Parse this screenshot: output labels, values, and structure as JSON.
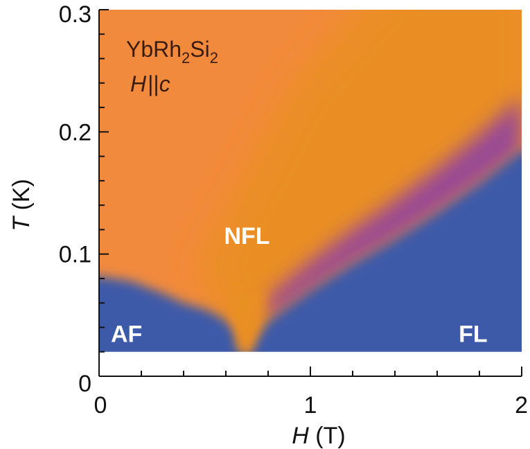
{
  "chart_data": {
    "type": "heatmap",
    "title": "",
    "xlabel": {
      "symbol": "H",
      "unit": " (T)"
    },
    "ylabel": {
      "symbol": "T",
      "unit": " (K)"
    },
    "xlim": [
      0,
      2
    ],
    "ylim": [
      0,
      0.3
    ],
    "x_ticks": [
      "0",
      "1",
      "2"
    ],
    "y_ticks": [
      "0",
      "0.1",
      "0.2",
      "0.3"
    ],
    "x_tick_values": [
      0,
      1,
      2
    ],
    "y_tick_values": [
      0,
      0.1,
      0.2,
      0.3
    ],
    "data_min_T": 0.02,
    "annotations": {
      "sample": {
        "base": "YbRh",
        "sub1": "2",
        "mid": "Si",
        "sub2": "2"
      },
      "field_direction": {
        "a": "H",
        "b": "||",
        "c": "c"
      }
    },
    "regions": [
      {
        "name": "AF",
        "label": "AF",
        "H": 0.13,
        "T": 0.035
      },
      {
        "name": "NFL",
        "label": "NFL",
        "H": 0.7,
        "T": 0.115
      },
      {
        "name": "FL",
        "label": "FL",
        "H": 1.77,
        "T": 0.035
      }
    ],
    "af_boundary": [
      [
        0,
        0.082
      ],
      [
        0.15,
        0.078
      ],
      [
        0.3,
        0.068
      ],
      [
        0.4,
        0.06
      ],
      [
        0.5,
        0.055
      ],
      [
        0.58,
        0.048
      ],
      [
        0.64,
        0.038
      ],
      [
        0.67,
        0.025
      ],
      [
        0.69,
        0.02
      ]
    ],
    "fl_boundary": [
      [
        0.7,
        0.02
      ],
      [
        0.74,
        0.03
      ],
      [
        0.8,
        0.045
      ],
      [
        1.0,
        0.07
      ],
      [
        1.2,
        0.092
      ],
      [
        1.4,
        0.112
      ],
      [
        1.6,
        0.134
      ],
      [
        1.8,
        0.158
      ],
      [
        2.0,
        0.185
      ]
    ],
    "colors": {
      "nfl": "#f28a3e",
      "crossover": "#ea8f24",
      "magenta": "#8a3ca8",
      "fl_af": "#3c5aa8",
      "bg": "#ffffff",
      "text": "#111111",
      "region_text": "#ffffff",
      "sample_text": "#3a1c10"
    }
  }
}
